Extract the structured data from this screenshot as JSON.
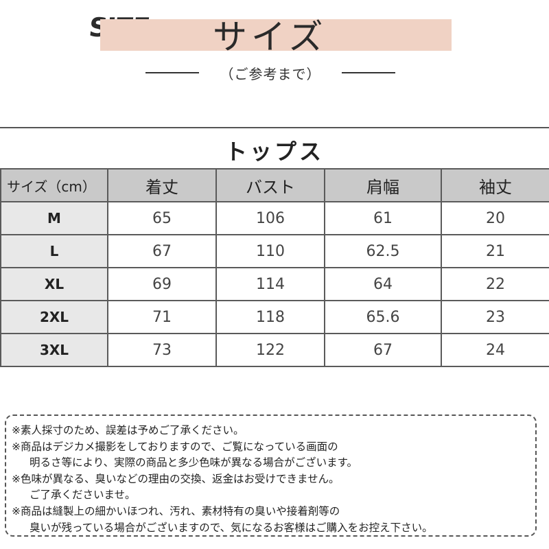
{
  "header": {
    "brand": "SIZE",
    "title": "サイズ",
    "subtitle": "（ご参考まで）"
  },
  "section_title": "トップス",
  "table": {
    "headers": [
      "サイズ（cm）",
      "着丈",
      "バスト",
      "肩幅",
      "袖丈"
    ],
    "rows": [
      {
        "size": "M",
        "values": [
          "65",
          "106",
          "61",
          "20"
        ]
      },
      {
        "size": "L",
        "values": [
          "67",
          "110",
          "62.5",
          "21"
        ]
      },
      {
        "size": "XL",
        "values": [
          "69",
          "114",
          "64",
          "22"
        ]
      },
      {
        "size": "2XL",
        "values": [
          "71",
          "118",
          "65.6",
          "23"
        ]
      },
      {
        "size": "3XL",
        "values": [
          "73",
          "122",
          "67",
          "24"
        ]
      }
    ]
  },
  "notes": [
    "※素人採寸のため、誤差は予めご了承ください。",
    "※商品はデジカメ撮影をしておりますので、ご覧になっている画面の",
    "明るさ等により、実際の商品と多少色味が異なる場合がございます。",
    "※色味が異なる、臭いなどの理由の交換、返金はお受けできません。",
    "ご了承くださいませ。",
    "※商品は縫製上の細かいほつれ、汚れ、素材特有の臭いや接着剤等の",
    "臭いが残っている場合がございますので、気になるお客様はご購入をお控え下さい。"
  ],
  "colors": {
    "title_band": "#f0d2c4",
    "header_row": "#c9c9c9",
    "size_column": "#e8e8e8",
    "border": "#5a5a5a"
  }
}
